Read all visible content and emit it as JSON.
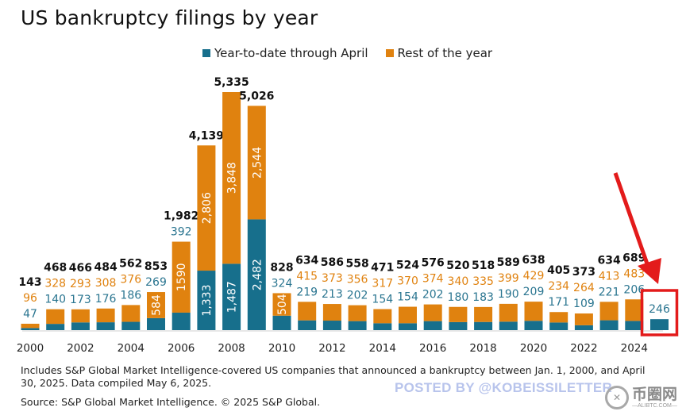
{
  "chart_data": {
    "type": "bar",
    "stacked": true,
    "title": "US bankruptcy filings by year",
    "xlabel": "",
    "ylabel": "",
    "ylim": [
      0,
      5400
    ],
    "grid": false,
    "legend_position": "top-center",
    "categories": [
      "2000",
      "2001",
      "2002",
      "2003",
      "2004",
      "2005",
      "2006",
      "2007",
      "2008",
      "2009",
      "2010",
      "2011",
      "2012",
      "2013",
      "2014",
      "2015",
      "2016",
      "2017",
      "2018",
      "2019",
      "2020",
      "2021",
      "2022",
      "2023",
      "2024",
      "2025"
    ],
    "x_tick_labels": [
      "2000",
      "2002",
      "2004",
      "2006",
      "2008",
      "2010",
      "2012",
      "2014",
      "2016",
      "2018",
      "2020",
      "2022",
      "2024"
    ],
    "series": [
      {
        "name": "Year-to-date through April",
        "color": "#176f8c",
        "values": [
          47,
          140,
          173,
          176,
          186,
          269,
          392,
          1333,
          1487,
          2482,
          324,
          219,
          213,
          202,
          154,
          154,
          202,
          180,
          183,
          190,
          209,
          171,
          109,
          221,
          206,
          246
        ]
      },
      {
        "name": "Rest of the year",
        "color": "#e0820f",
        "values": [
          96,
          328,
          293,
          308,
          376,
          584,
          1590,
          2806,
          3848,
          2544,
          504,
          415,
          373,
          356,
          317,
          370,
          374,
          340,
          335,
          399,
          429,
          234,
          264,
          413,
          483,
          null
        ]
      }
    ],
    "totals": [
      143,
      468,
      466,
      484,
      562,
      853,
      1982,
      4139,
      5335,
      5026,
      828,
      634,
      586,
      558,
      471,
      524,
      576,
      520,
      518,
      589,
      638,
      405,
      373,
      634,
      689,
      null
    ],
    "value_labels": {
      "ytd": [
        "47",
        "140",
        "173",
        "176",
        "186",
        "269",
        "392",
        "1,333",
        "1,487",
        "2,482",
        "324",
        "219",
        "213",
        "202",
        "154",
        "154",
        "202",
        "180",
        "183",
        "190",
        "209",
        "171",
        "109",
        "221",
        "206",
        "246"
      ],
      "rest": [
        "96",
        "328",
        "293",
        "308",
        "376",
        "584",
        "1590",
        "2,806",
        "3,848",
        "2,544",
        "504",
        "415",
        "373",
        "356",
        "317",
        "370",
        "374",
        "340",
        "335",
        "399",
        "429",
        "234",
        "264",
        "413",
        "483",
        ""
      ],
      "totals": [
        "143",
        "468",
        "466",
        "484",
        "562",
        "853",
        "1,982",
        "4,139",
        "5,335",
        "5,026",
        "828",
        "634",
        "586",
        "558",
        "471",
        "524",
        "576",
        "520",
        "518",
        "589",
        "638",
        "405",
        "373",
        "634",
        "689",
        ""
      ]
    },
    "annotations": [
      {
        "type": "highlight-box-with-arrow",
        "target_category": "2025",
        "color": "#e31b1b"
      }
    ]
  },
  "legend": {
    "items": [
      {
        "label": "Year-to-date through April",
        "color": "#176f8c"
      },
      {
        "label": "Rest of the year",
        "color": "#e0820f"
      }
    ]
  },
  "footnote": "Includes S&P Global Market Intelligence-covered US companies that announced a bankruptcy between Jan. 1, 2000, and April 30, 2025.  Data compiled May 6, 2025.",
  "source": "Source: S&P Global Market Intelligence.  © 2025 S&P Global.",
  "watermark": "POSTED BY @KOBEISSILETTER",
  "brand": {
    "name": "币圈网",
    "domain": "—ALIBTC.COM—"
  }
}
